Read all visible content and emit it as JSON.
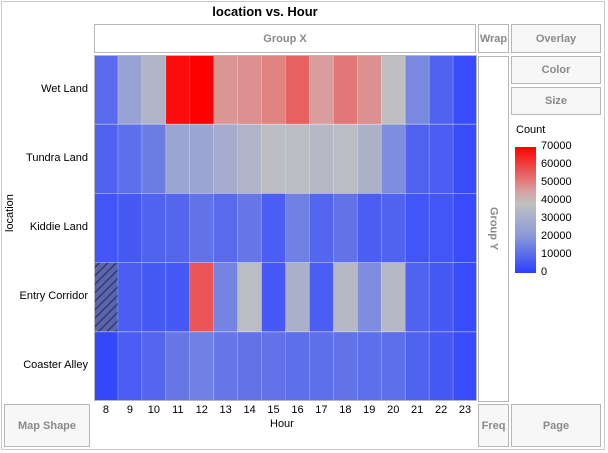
{
  "chart_data": {
    "type": "heatmap",
    "title": "location vs. Hour",
    "xlabel": "Hour",
    "ylabel": "location",
    "x": [
      "8",
      "9",
      "10",
      "11",
      "12",
      "13",
      "14",
      "15",
      "16",
      "17",
      "18",
      "19",
      "20",
      "21",
      "22",
      "23"
    ],
    "y": [
      "Wet Land",
      "Tundra Land",
      "Kiddie Land",
      "Entry Corridor",
      "Coaster Alley"
    ],
    "values": [
      [
        10000,
        25000,
        33000,
        68000,
        70000,
        47000,
        48000,
        50000,
        55000,
        46000,
        52000,
        48000,
        38000,
        17000,
        8000,
        3000
      ],
      [
        8000,
        11000,
        14000,
        26000,
        26000,
        29000,
        33000,
        37000,
        37000,
        35000,
        37000,
        32000,
        18000,
        8000,
        7000,
        3000
      ],
      [
        5000,
        6000,
        8000,
        9000,
        12000,
        10000,
        13000,
        7000,
        15000,
        9000,
        12000,
        7000,
        8000,
        5000,
        5000,
        3000
      ],
      [
        null,
        7000,
        6000,
        6000,
        57000,
        16000,
        37000,
        6000,
        31000,
        7000,
        35000,
        18000,
        35000,
        8000,
        6000,
        3000
      ],
      [
        2000,
        7000,
        9000,
        13000,
        15000,
        13000,
        12000,
        12000,
        11000,
        11000,
        12000,
        11000,
        11000,
        8000,
        6000,
        3000
      ]
    ],
    "zlabel": "Count",
    "zlim": [
      0,
      70000
    ],
    "legend_ticks": [
      "70000",
      "60000",
      "50000",
      "40000",
      "30000",
      "20000",
      "10000",
      "0"
    ]
  },
  "zones": {
    "group_x": "Group X",
    "group_y": "Group Y",
    "wrap": "Wrap",
    "overlay": "Overlay",
    "color": "Color",
    "size": "Size",
    "map_shape": "Map Shape",
    "freq": "Freq",
    "page": "Page"
  }
}
